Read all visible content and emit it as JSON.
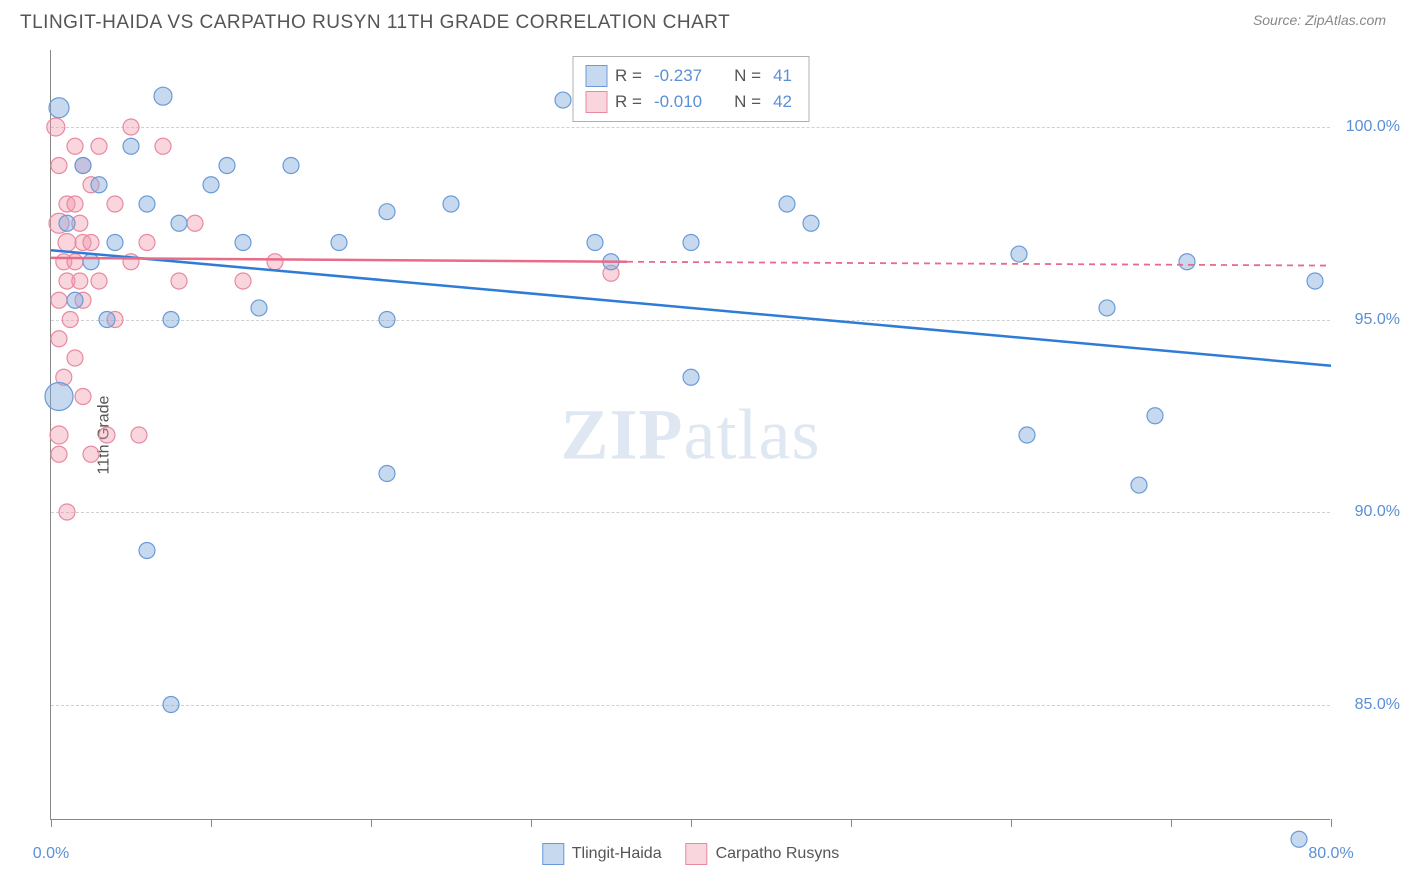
{
  "title": "TLINGIT-HAIDA VS CARPATHO RUSYN 11TH GRADE CORRELATION CHART",
  "source": "Source: ZipAtlas.com",
  "ylabel": "11th Grade",
  "watermark_a": "ZIP",
  "watermark_b": "atlas",
  "chart": {
    "type": "scatter-correlation",
    "xlim": [
      0,
      80
    ],
    "ylim": [
      82,
      102
    ],
    "y_ticks": [
      85,
      90,
      95,
      100
    ],
    "y_tick_labels": [
      "85.0%",
      "90.0%",
      "95.0%",
      "100.0%"
    ],
    "x_ticks": [
      0,
      10,
      20,
      30,
      40,
      50,
      60,
      70,
      80
    ],
    "x_tick_labels_shown": {
      "0": "0.0%",
      "80": "80.0%"
    },
    "grid_color": "#d0d0d0",
    "background_color": "#ffffff",
    "series_a": {
      "name": "Tlingit-Haida",
      "fill": "rgba(130,170,220,0.45)",
      "stroke": "#6a9bd8",
      "line_color": "#2e7cd6",
      "r": -0.237,
      "n": 41,
      "trend": {
        "x1": 0,
        "y1": 96.8,
        "x2": 80,
        "y2": 93.8
      },
      "points": [
        {
          "x": 0.5,
          "y": 93.0,
          "r": 14
        },
        {
          "x": 0.5,
          "y": 100.5,
          "r": 10
        },
        {
          "x": 1.0,
          "y": 97.5,
          "r": 8
        },
        {
          "x": 1.5,
          "y": 95.5,
          "r": 8
        },
        {
          "x": 2.0,
          "y": 99.0,
          "r": 8
        },
        {
          "x": 2.5,
          "y": 96.5,
          "r": 8
        },
        {
          "x": 3.0,
          "y": 98.5,
          "r": 8
        },
        {
          "x": 3.5,
          "y": 95.0,
          "r": 8
        },
        {
          "x": 4.0,
          "y": 97.0,
          "r": 8
        },
        {
          "x": 5.0,
          "y": 99.5,
          "r": 8
        },
        {
          "x": 6.0,
          "y": 98.0,
          "r": 8
        },
        {
          "x": 7.0,
          "y": 100.8,
          "r": 9
        },
        {
          "x": 7.5,
          "y": 95.0,
          "r": 8
        },
        {
          "x": 8.0,
          "y": 97.5,
          "r": 8
        },
        {
          "x": 6.0,
          "y": 89.0,
          "r": 8
        },
        {
          "x": 7.5,
          "y": 85.0,
          "r": 8
        },
        {
          "x": 10.0,
          "y": 98.5,
          "r": 8
        },
        {
          "x": 11.0,
          "y": 99.0,
          "r": 8
        },
        {
          "x": 12.0,
          "y": 97.0,
          "r": 8
        },
        {
          "x": 13.0,
          "y": 95.3,
          "r": 8
        },
        {
          "x": 15.0,
          "y": 99.0,
          "r": 8
        },
        {
          "x": 18.0,
          "y": 97.0,
          "r": 8
        },
        {
          "x": 21.0,
          "y": 97.8,
          "r": 8
        },
        {
          "x": 21.0,
          "y": 95.0,
          "r": 8
        },
        {
          "x": 21.0,
          "y": 91.0,
          "r": 8
        },
        {
          "x": 25.0,
          "y": 98.0,
          "r": 8
        },
        {
          "x": 32.0,
          "y": 100.7,
          "r": 8
        },
        {
          "x": 34.0,
          "y": 97.0,
          "r": 8
        },
        {
          "x": 35.0,
          "y": 96.5,
          "r": 8
        },
        {
          "x": 40.0,
          "y": 93.5,
          "r": 8
        },
        {
          "x": 40.0,
          "y": 97.0,
          "r": 8
        },
        {
          "x": 46.0,
          "y": 98.0,
          "r": 8
        },
        {
          "x": 47.5,
          "y": 97.5,
          "r": 8
        },
        {
          "x": 60.5,
          "y": 96.7,
          "r": 8
        },
        {
          "x": 61.0,
          "y": 92.0,
          "r": 8
        },
        {
          "x": 66.0,
          "y": 95.3,
          "r": 8
        },
        {
          "x": 68.0,
          "y": 90.7,
          "r": 8
        },
        {
          "x": 69.0,
          "y": 92.5,
          "r": 8
        },
        {
          "x": 71.0,
          "y": 96.5,
          "r": 8
        },
        {
          "x": 78.0,
          "y": 81.5,
          "r": 8
        },
        {
          "x": 79.0,
          "y": 96.0,
          "r": 8
        }
      ]
    },
    "series_b": {
      "name": "Carpatho Rusyns",
      "fill": "rgba(240,150,170,0.40)",
      "stroke": "#e88aa0",
      "line_color": "#e86b8a",
      "r": -0.01,
      "n": 42,
      "trend_solid": {
        "x1": 0,
        "y1": 96.6,
        "x2": 36,
        "y2": 96.5
      },
      "trend_dashed": {
        "x1": 36,
        "y1": 96.5,
        "x2": 80,
        "y2": 96.4
      },
      "points": [
        {
          "x": 0.3,
          "y": 100.0,
          "r": 9
        },
        {
          "x": 0.5,
          "y": 99.0,
          "r": 8
        },
        {
          "x": 0.5,
          "y": 97.5,
          "r": 10
        },
        {
          "x": 0.8,
          "y": 96.5,
          "r": 8
        },
        {
          "x": 0.5,
          "y": 95.5,
          "r": 8
        },
        {
          "x": 0.5,
          "y": 94.5,
          "r": 8
        },
        {
          "x": 0.8,
          "y": 93.5,
          "r": 8
        },
        {
          "x": 0.5,
          "y": 92.0,
          "r": 9
        },
        {
          "x": 0.5,
          "y": 91.5,
          "r": 8
        },
        {
          "x": 1.0,
          "y": 98.0,
          "r": 8
        },
        {
          "x": 1.0,
          "y": 97.0,
          "r": 9
        },
        {
          "x": 1.0,
          "y": 96.0,
          "r": 8
        },
        {
          "x": 1.2,
          "y": 95.0,
          "r": 8
        },
        {
          "x": 1.0,
          "y": 90.0,
          "r": 8
        },
        {
          "x": 1.5,
          "y": 99.5,
          "r": 8
        },
        {
          "x": 1.5,
          "y": 98.0,
          "r": 8
        },
        {
          "x": 1.5,
          "y": 96.5,
          "r": 8
        },
        {
          "x": 1.5,
          "y": 94.0,
          "r": 8
        },
        {
          "x": 1.8,
          "y": 97.5,
          "r": 8
        },
        {
          "x": 1.8,
          "y": 96.0,
          "r": 8
        },
        {
          "x": 2.0,
          "y": 99.0,
          "r": 8
        },
        {
          "x": 2.0,
          "y": 97.0,
          "r": 8
        },
        {
          "x": 2.0,
          "y": 95.5,
          "r": 8
        },
        {
          "x": 2.0,
          "y": 93.0,
          "r": 8
        },
        {
          "x": 2.5,
          "y": 98.5,
          "r": 8
        },
        {
          "x": 2.5,
          "y": 97.0,
          "r": 8
        },
        {
          "x": 2.5,
          "y": 91.5,
          "r": 8
        },
        {
          "x": 3.0,
          "y": 99.5,
          "r": 8
        },
        {
          "x": 3.0,
          "y": 96.0,
          "r": 8
        },
        {
          "x": 3.5,
          "y": 92.0,
          "r": 8
        },
        {
          "x": 4.0,
          "y": 98.0,
          "r": 8
        },
        {
          "x": 4.0,
          "y": 95.0,
          "r": 8
        },
        {
          "x": 5.0,
          "y": 100.0,
          "r": 8
        },
        {
          "x": 5.0,
          "y": 96.5,
          "r": 8
        },
        {
          "x": 5.5,
          "y": 92.0,
          "r": 8
        },
        {
          "x": 6.0,
          "y": 97.0,
          "r": 8
        },
        {
          "x": 7.0,
          "y": 99.5,
          "r": 8
        },
        {
          "x": 8.0,
          "y": 96.0,
          "r": 8
        },
        {
          "x": 9.0,
          "y": 97.5,
          "r": 8
        },
        {
          "x": 12.0,
          "y": 96.0,
          "r": 8
        },
        {
          "x": 14.0,
          "y": 96.5,
          "r": 8
        },
        {
          "x": 35.0,
          "y": 96.2,
          "r": 8
        }
      ]
    }
  },
  "legend_top": [
    {
      "swatch_fill": "rgba(130,170,220,0.45)",
      "swatch_stroke": "#6a9bd8",
      "r_label": "R =",
      "r_val": "-0.237",
      "n_label": "N =",
      "n_val": "41"
    },
    {
      "swatch_fill": "rgba(240,150,170,0.40)",
      "swatch_stroke": "#e88aa0",
      "r_label": "R =",
      "r_val": "-0.010",
      "n_label": "N =",
      "n_val": "42"
    }
  ],
  "legend_bottom": [
    {
      "swatch_fill": "rgba(130,170,220,0.45)",
      "swatch_stroke": "#6a9bd8",
      "label": "Tlingit-Haida"
    },
    {
      "swatch_fill": "rgba(240,150,170,0.40)",
      "swatch_stroke": "#e88aa0",
      "label": "Carpatho Rusyns"
    }
  ]
}
